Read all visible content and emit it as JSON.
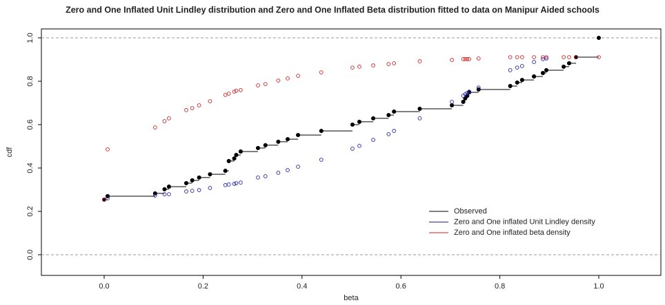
{
  "chart_data": {
    "type": "ecdf",
    "title": "Zero and One Inflated Unit Lindley distribution and Zero and One Inflated Beta distribution fitted to data on Manipur Aided schools",
    "x_label": "beta",
    "y_label": "cdf",
    "x": [
      0.0,
      0.007,
      0.103,
      0.122,
      0.131,
      0.166,
      0.178,
      0.192,
      0.214,
      0.245,
      0.252,
      0.263,
      0.267,
      0.276,
      0.311,
      0.326,
      0.352,
      0.371,
      0.392,
      0.439,
      0.502,
      0.516,
      0.544,
      0.575,
      0.586,
      0.638,
      0.703,
      0.726,
      0.73,
      0.734,
      0.738,
      0.757,
      0.821,
      0.835,
      0.845,
      0.869,
      0.887,
      0.894,
      0.929,
      0.94,
      0.954,
      1.0
    ],
    "series": [
      {
        "name": "Observed",
        "color": "#000000",
        "values": [
          0.254,
          0.27,
          0.283,
          0.302,
          0.314,
          0.33,
          0.343,
          0.356,
          0.371,
          0.387,
          0.432,
          0.444,
          0.46,
          0.476,
          0.492,
          0.505,
          0.521,
          0.533,
          0.552,
          0.571,
          0.6,
          0.613,
          0.629,
          0.644,
          0.66,
          0.673,
          0.689,
          0.705,
          0.721,
          0.733,
          0.749,
          0.762,
          0.778,
          0.794,
          0.806,
          0.822,
          0.838,
          0.851,
          0.867,
          0.883,
          0.911,
          1.0
        ]
      },
      {
        "name": "Zero and One inflated Unit Lindley density",
        "color": "#2222aa",
        "values": [
          0.254,
          0.26,
          0.273,
          0.279,
          0.279,
          0.292,
          0.295,
          0.298,
          0.308,
          0.321,
          0.324,
          0.327,
          0.33,
          0.333,
          0.356,
          0.362,
          0.378,
          0.39,
          0.406,
          0.438,
          0.489,
          0.502,
          0.53,
          0.556,
          0.571,
          0.629,
          0.705,
          0.733,
          0.74,
          0.746,
          0.752,
          0.771,
          0.851,
          0.863,
          0.87,
          0.889,
          0.902,
          0.905,
          null,
          null,
          null,
          null
        ]
      },
      {
        "name": "Zero and One inflated beta density",
        "color": "#cc2222",
        "values": [
          0.254,
          0.486,
          0.587,
          0.616,
          0.629,
          0.667,
          0.676,
          0.689,
          0.708,
          0.737,
          0.743,
          0.752,
          0.756,
          0.759,
          0.781,
          0.787,
          0.803,
          0.813,
          0.825,
          0.841,
          0.863,
          0.867,
          0.873,
          0.879,
          0.883,
          0.892,
          0.898,
          0.902,
          0.902,
          0.902,
          0.902,
          0.905,
          0.911,
          0.911,
          0.911,
          0.911,
          0.911,
          0.911,
          0.911,
          0.911,
          0.911,
          0.911
        ]
      }
    ],
    "xlim": [
      -0.1269,
      1.1255
    ],
    "ylim": [
      -0.0952,
      1.0413
    ],
    "xticks": [
      {
        "value": 0,
        "label": "0.0"
      },
      {
        "value": 0.2,
        "label": "0.2"
      },
      {
        "value": 0.4,
        "label": "0.4"
      },
      {
        "value": 0.6,
        "label": "0.6"
      },
      {
        "value": 0.8,
        "label": "0.8"
      },
      {
        "value": 1,
        "label": "1.0"
      }
    ],
    "yticks": [
      {
        "value": 0,
        "label": "0.0"
      },
      {
        "value": 0.2,
        "label": "0.2"
      },
      {
        "value": 0.4,
        "label": "0.4"
      },
      {
        "value": 0.6,
        "label": "0.6"
      },
      {
        "value": 0.8,
        "label": "0.8"
      },
      {
        "value": 1,
        "label": "1.0"
      }
    ],
    "reference_lines": [
      0,
      1
    ],
    "legend": "bottomright"
  }
}
